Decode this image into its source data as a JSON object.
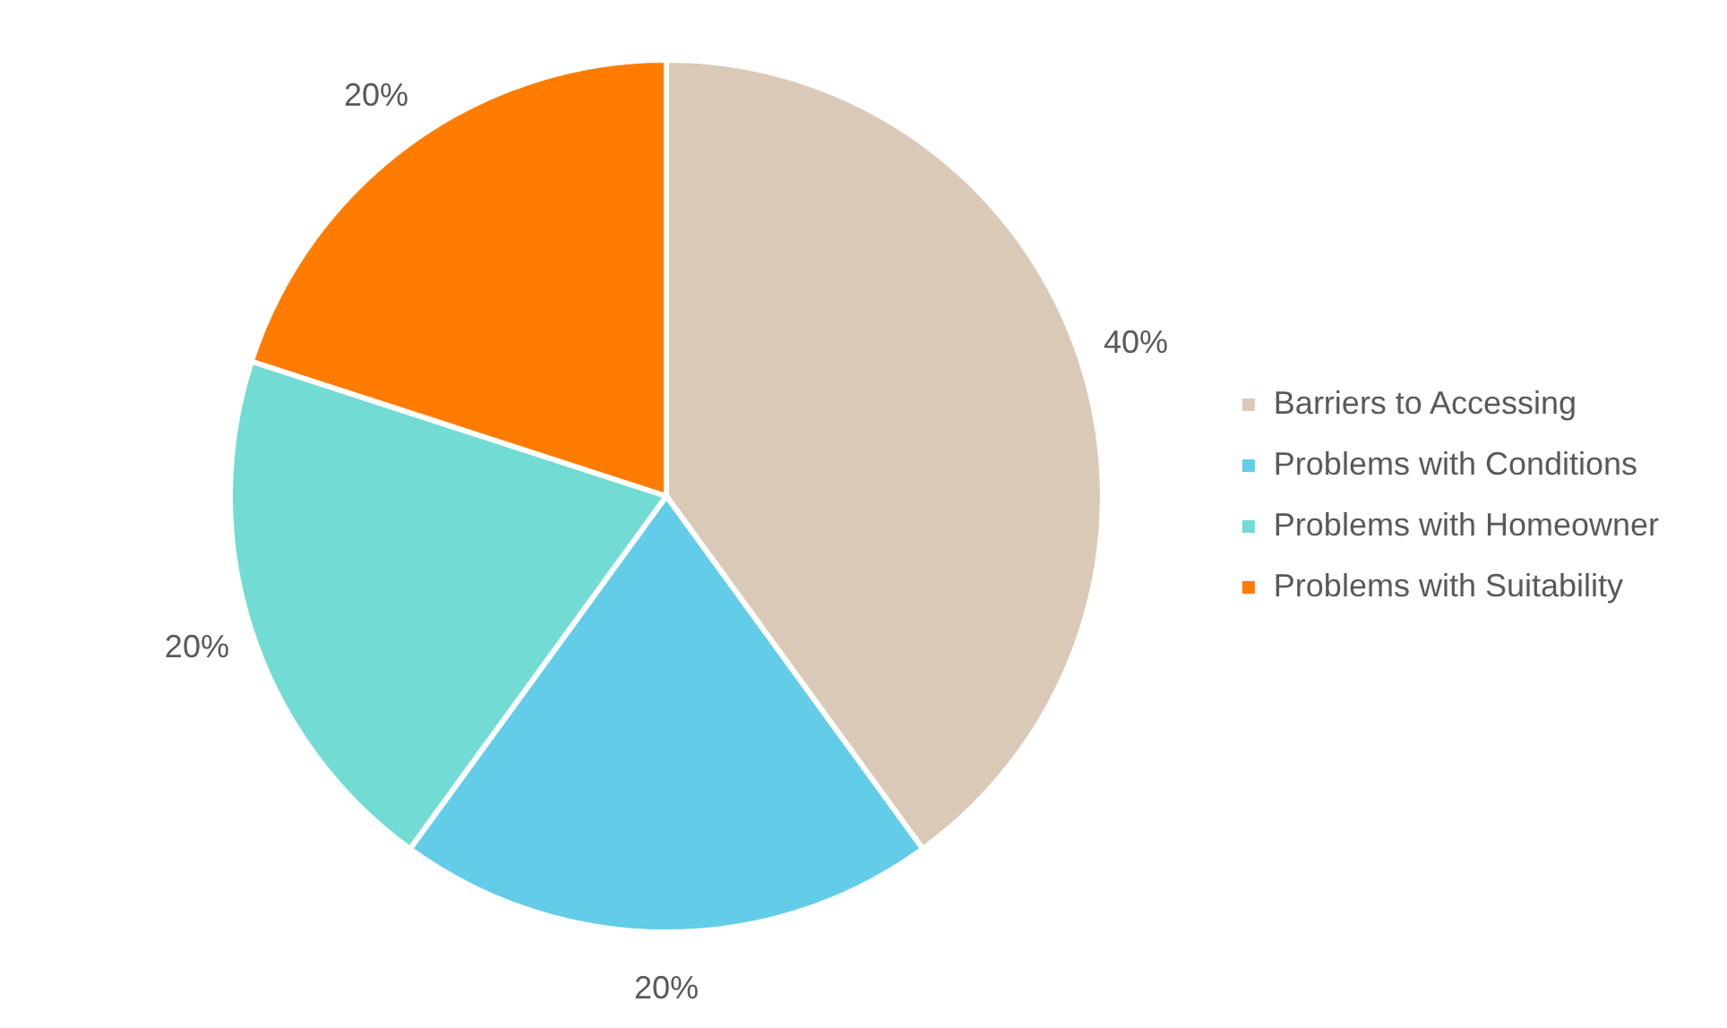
{
  "chart_data": {
    "type": "pie",
    "categories": [
      "Barriers to Accessing",
      "Problems with Conditions",
      "Problems with Homeowner",
      "Problems with Suitability"
    ],
    "values": [
      40,
      20,
      20,
      20
    ],
    "colors": [
      "#dbc9b8",
      "#63cde9",
      "#72dcd4",
      "#ff7c00"
    ],
    "value_labels": [
      "40%",
      "20%",
      "20%",
      "20%"
    ],
    "legend": "right"
  }
}
